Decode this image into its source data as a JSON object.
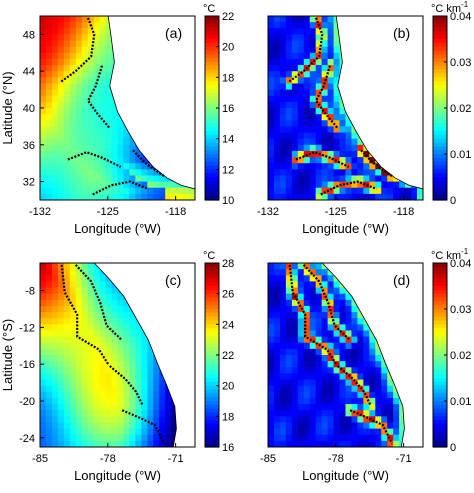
{
  "chart_data": [
    {
      "type": "heatmap",
      "panel_label": "(a)",
      "field": "sst",
      "region": "north",
      "x_ticks": [
        "-132",
        "-125",
        "-118"
      ],
      "y_ticks": [
        "48",
        "44",
        "40",
        "36",
        "32"
      ],
      "xlim": [
        -132,
        -116
      ],
      "ylim": [
        30,
        50
      ],
      "xlabel": "Longitude (°W)",
      "ylabel": "Latitude (°N)",
      "colorbar": {
        "unit": "°C",
        "ticks": [
          "22",
          "20",
          "18",
          "16",
          "14",
          "12",
          "10"
        ],
        "range": [
          10,
          22
        ],
        "colormap": "jet"
      }
    },
    {
      "type": "heatmap",
      "panel_label": "(b)",
      "field": "gradient",
      "region": "north",
      "x_ticks": [
        "-132",
        "-125",
        "-118"
      ],
      "xlim": [
        -132,
        -116
      ],
      "ylim": [
        30,
        50
      ],
      "xlabel": "Longitude (°W)",
      "ylabel": "",
      "colorbar": {
        "unit_base": "°C km",
        "unit_exp": "-1",
        "ticks": [
          "0.04",
          "0.03",
          "0.02",
          "0.01",
          "0"
        ],
        "range": [
          0,
          0.04
        ],
        "colormap": "jet"
      }
    },
    {
      "type": "heatmap",
      "panel_label": "(c)",
      "field": "sst",
      "region": "south",
      "x_ticks": [
        "-85",
        "-78",
        "-71"
      ],
      "y_ticks": [
        "-8",
        "-12",
        "-16",
        "-20",
        "-24"
      ],
      "xlim": [
        -85,
        -69
      ],
      "ylim": [
        -25,
        -5
      ],
      "xlabel": "Longitude (°W)",
      "ylabel": "Latitude (°S)",
      "colorbar": {
        "unit": "°C",
        "ticks": [
          "28",
          "26",
          "24",
          "22",
          "20",
          "18",
          "16"
        ],
        "range": [
          16,
          28
        ],
        "colormap": "jet"
      }
    },
    {
      "type": "heatmap",
      "panel_label": "(d)",
      "field": "gradient",
      "region": "south",
      "x_ticks": [
        "-85",
        "-78",
        "-71"
      ],
      "xlim": [
        -85,
        -69
      ],
      "ylim": [
        -25,
        -5
      ],
      "xlabel": "Longitude (°W)",
      "ylabel": "",
      "colorbar": {
        "unit_base": "°C km",
        "unit_exp": "-1",
        "ticks": [
          "0.04",
          "0.03",
          "0.02",
          "0.01",
          "0"
        ],
        "range": [
          0,
          0.04
        ],
        "colormap": "jet"
      }
    }
  ],
  "colors": {
    "land": "#ffffff",
    "front_line": "#000000",
    "coast_line": "#000000",
    "axis": "#000000"
  }
}
